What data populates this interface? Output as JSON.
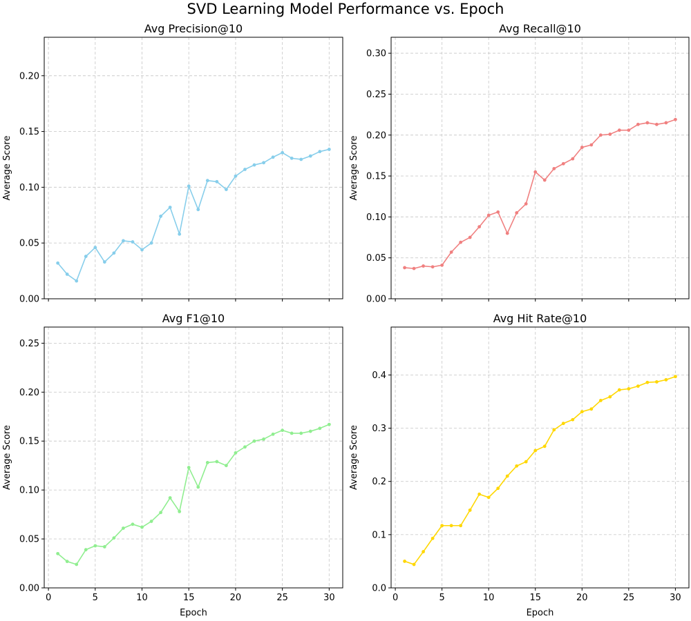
{
  "figure": {
    "title": "SVD Learning Model Performance vs. Epoch"
  },
  "chart_data": [
    {
      "type": "line",
      "title": "Avg Precision@10",
      "xlabel": "",
      "ylabel": "Average Score",
      "xlim": [
        -0.45,
        31.45
      ],
      "ylim": [
        0,
        0.2345
      ],
      "xticks": [
        0,
        5,
        10,
        15,
        20,
        25,
        30
      ],
      "show_xtick_labels": false,
      "yticks": [
        0.0,
        0.05,
        0.1,
        0.15,
        0.2
      ],
      "ytick_labels": [
        "0.00",
        "0.05",
        "0.10",
        "0.15",
        "0.20"
      ],
      "grid": true,
      "color": "#87ceeb",
      "x": [
        1,
        2,
        3,
        4,
        5,
        6,
        7,
        8,
        9,
        10,
        11,
        12,
        13,
        14,
        15,
        16,
        17,
        18,
        19,
        20,
        21,
        22,
        23,
        24,
        25,
        26,
        27,
        28,
        29,
        30
      ],
      "y": [
        0.032,
        0.022,
        0.016,
        0.038,
        0.046,
        0.033,
        0.041,
        0.052,
        0.051,
        0.044,
        0.05,
        0.074,
        0.082,
        0.058,
        0.101,
        0.08,
        0.106,
        0.105,
        0.098,
        0.11,
        0.116,
        0.12,
        0.122,
        0.127,
        0.131,
        0.126,
        0.125,
        0.128,
        0.132,
        0.134
      ]
    },
    {
      "type": "line",
      "title": "Avg Recall@10",
      "xlabel": "",
      "ylabel": "Average Score",
      "xlim": [
        -0.45,
        31.45
      ],
      "ylim": [
        0,
        0.3195
      ],
      "xticks": [
        0,
        5,
        10,
        15,
        20,
        25,
        30
      ],
      "show_xtick_labels": false,
      "yticks": [
        0.0,
        0.05,
        0.1,
        0.15,
        0.2,
        0.25,
        0.3
      ],
      "ytick_labels": [
        "0.00",
        "0.05",
        "0.10",
        "0.15",
        "0.20",
        "0.25",
        "0.30"
      ],
      "grid": true,
      "color": "#f08080",
      "x": [
        1,
        2,
        3,
        4,
        5,
        6,
        7,
        8,
        9,
        10,
        11,
        12,
        13,
        14,
        15,
        16,
        17,
        18,
        19,
        20,
        21,
        22,
        23,
        24,
        25,
        26,
        27,
        28,
        29,
        30
      ],
      "y": [
        0.038,
        0.037,
        0.04,
        0.039,
        0.041,
        0.057,
        0.069,
        0.075,
        0.088,
        0.102,
        0.106,
        0.08,
        0.105,
        0.116,
        0.155,
        0.145,
        0.159,
        0.165,
        0.171,
        0.185,
        0.188,
        0.2,
        0.201,
        0.206,
        0.206,
        0.213,
        0.215,
        0.213,
        0.215,
        0.219
      ]
    },
    {
      "type": "line",
      "title": "Avg F1@10",
      "xlabel": "Epoch",
      "ylabel": "Average Score",
      "xlim": [
        -0.45,
        31.45
      ],
      "ylim": [
        0,
        0.2665
      ],
      "xticks": [
        0,
        5,
        10,
        15,
        20,
        25,
        30
      ],
      "show_xtick_labels": true,
      "yticks": [
        0.0,
        0.05,
        0.1,
        0.15,
        0.2,
        0.25
      ],
      "ytick_labels": [
        "0.00",
        "0.05",
        "0.10",
        "0.15",
        "0.20",
        "0.25"
      ],
      "grid": true,
      "color": "#90ee90",
      "x": [
        1,
        2,
        3,
        4,
        5,
        6,
        7,
        8,
        9,
        10,
        11,
        12,
        13,
        14,
        15,
        16,
        17,
        18,
        19,
        20,
        21,
        22,
        23,
        24,
        25,
        26,
        27,
        28,
        29,
        30
      ],
      "y": [
        0.035,
        0.027,
        0.024,
        0.039,
        0.043,
        0.042,
        0.051,
        0.061,
        0.065,
        0.062,
        0.068,
        0.077,
        0.092,
        0.078,
        0.123,
        0.103,
        0.128,
        0.129,
        0.125,
        0.138,
        0.144,
        0.15,
        0.152,
        0.157,
        0.161,
        0.158,
        0.158,
        0.16,
        0.163,
        0.167
      ]
    },
    {
      "type": "line",
      "title": "Avg Hit Rate@10",
      "xlabel": "Epoch",
      "ylabel": "Average Score",
      "xlim": [
        -0.45,
        31.45
      ],
      "ylim": [
        0,
        0.49
      ],
      "xticks": [
        0,
        5,
        10,
        15,
        20,
        25,
        30
      ],
      "show_xtick_labels": true,
      "yticks": [
        0.0,
        0.1,
        0.2,
        0.3,
        0.4
      ],
      "ytick_labels": [
        "0.0",
        "0.1",
        "0.2",
        "0.3",
        "0.4"
      ],
      "grid": true,
      "color": "#ffd700",
      "x": [
        1,
        2,
        3,
        4,
        5,
        6,
        7,
        8,
        9,
        10,
        11,
        12,
        13,
        14,
        15,
        16,
        17,
        18,
        19,
        20,
        21,
        22,
        23,
        24,
        25,
        26,
        27,
        28,
        29,
        30
      ],
      "y": [
        0.05,
        0.044,
        0.068,
        0.093,
        0.117,
        0.117,
        0.117,
        0.146,
        0.176,
        0.17,
        0.187,
        0.21,
        0.229,
        0.237,
        0.258,
        0.266,
        0.297,
        0.309,
        0.316,
        0.331,
        0.336,
        0.352,
        0.359,
        0.372,
        0.374,
        0.379,
        0.386,
        0.387,
        0.391,
        0.397
      ]
    }
  ]
}
